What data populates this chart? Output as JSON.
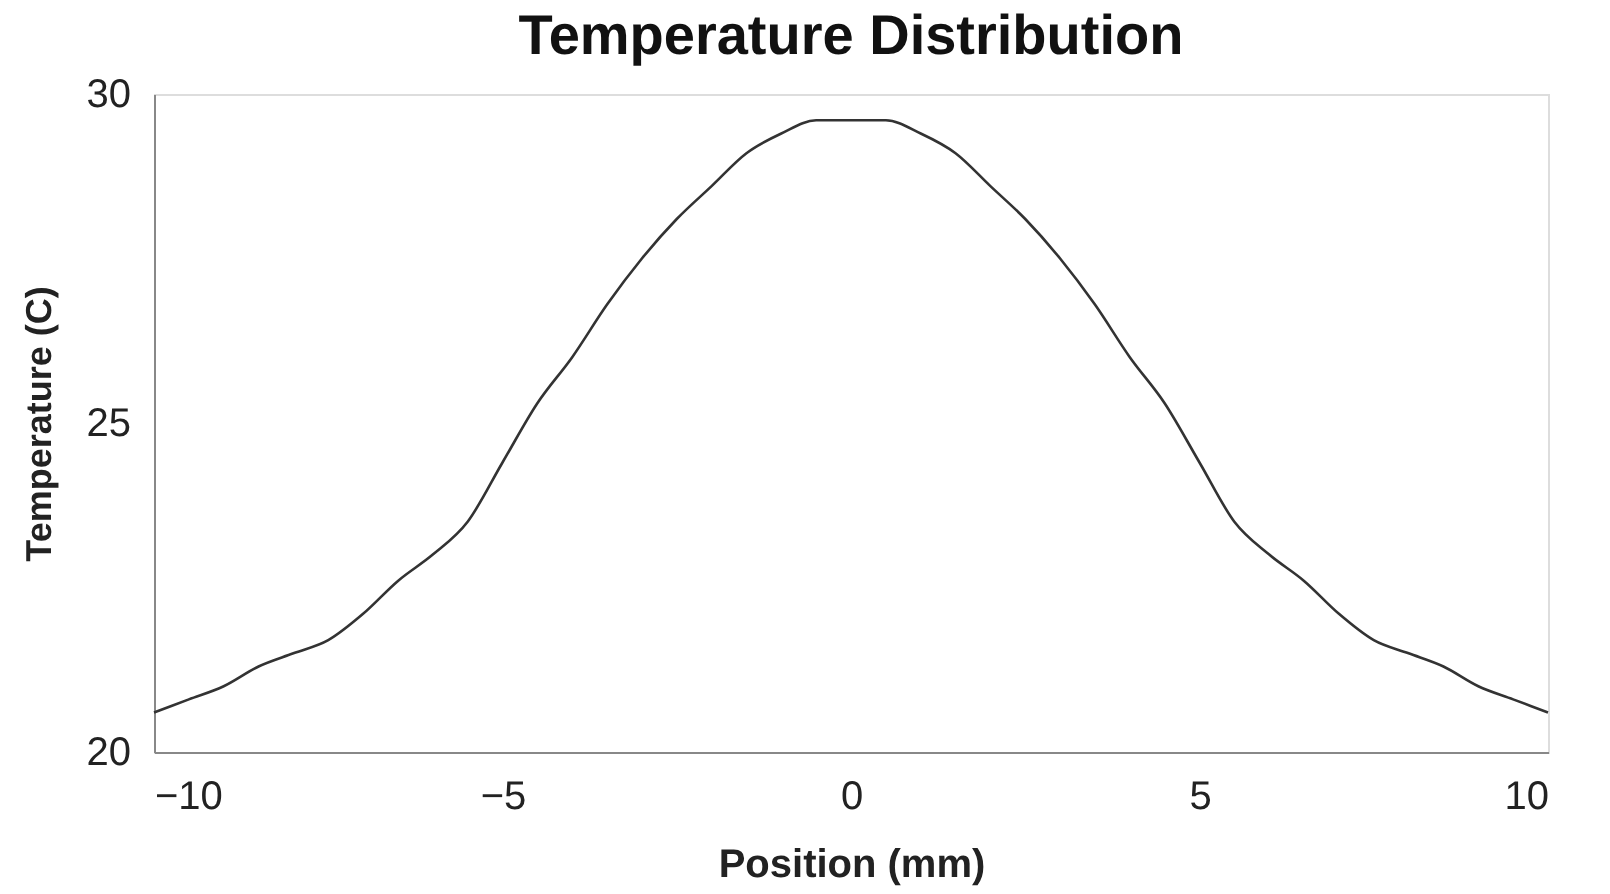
{
  "chart_data": {
    "type": "line",
    "title": "Temperature Distribution",
    "xlabel": "Position (mm)",
    "ylabel": "Temperature (C)",
    "x": [
      -10,
      -9.5,
      -9,
      -8.5,
      -8,
      -7.5,
      -7,
      -6.5,
      -6,
      -5.5,
      -5,
      -4.5,
      -4,
      -3.5,
      -3,
      -2.5,
      -2,
      -1.5,
      -1,
      -0.5,
      0,
      0.5,
      1,
      1.5,
      2,
      2.5,
      3,
      3.5,
      4,
      4.5,
      5,
      5.5,
      6,
      6.5,
      7,
      7.5,
      8,
      8.5,
      9,
      9.5,
      10
    ],
    "series": [
      {
        "color": "#333333",
        "values": [
          20.6,
          20.8,
          21.0,
          21.3,
          21.5,
          21.7,
          22.1,
          22.6,
          23.0,
          23.5,
          24.4,
          25.3,
          26.0,
          26.8,
          27.5,
          28.1,
          28.6,
          29.1,
          29.4,
          29.6,
          29.6,
          29.6,
          29.4,
          29.1,
          28.6,
          28.1,
          27.5,
          26.8,
          26.0,
          25.3,
          24.4,
          23.5,
          23.0,
          22.6,
          22.1,
          21.7,
          21.5,
          21.3,
          21.0,
          20.8,
          20.6
        ]
      }
    ],
    "xlim": [
      -10,
      10
    ],
    "xticks": [
      -10,
      -5,
      0,
      5,
      10
    ],
    "ylim": [
      20,
      30
    ],
    "yticks": [
      20,
      25,
      30
    ],
    "grid": false,
    "marker": "none",
    "line_style": "solid"
  }
}
